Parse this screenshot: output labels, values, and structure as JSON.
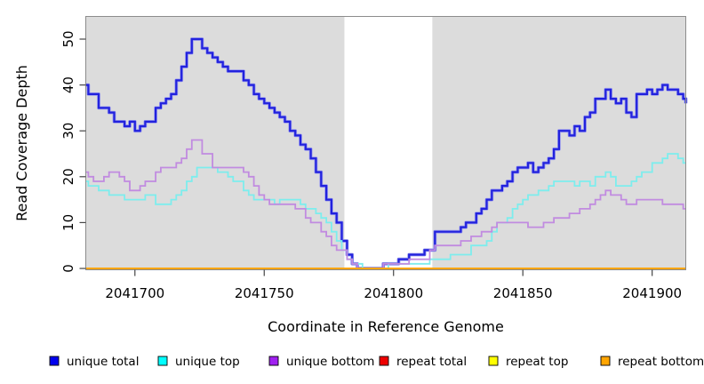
{
  "chart_data": {
    "type": "line",
    "subtype": "step",
    "title": "",
    "xlabel": "Coordinate in Reference Genome",
    "ylabel": "Read Coverage Depth",
    "xlim": [
      2041681,
      2041913
    ],
    "ylim": [
      0,
      55
    ],
    "x_ticks": [
      2041700,
      2041750,
      2041800,
      2041850,
      2041900
    ],
    "y_ticks": [
      0,
      10,
      20,
      30,
      40,
      50
    ],
    "grid": false,
    "legend_position": "bottom",
    "panel_bg_color": "#DCDCDC",
    "panel_border_color": "#8C8C8C",
    "tick_color": "#444444",
    "highlight_region": {
      "x_start": 2041781,
      "x_end": 2041815,
      "color": "#FFFFFF"
    },
    "x": [
      2041680,
      2041682,
      2041684,
      2041686,
      2041688,
      2041690,
      2041692,
      2041694,
      2041696,
      2041698,
      2041700,
      2041702,
      2041704,
      2041706,
      2041708,
      2041710,
      2041712,
      2041714,
      2041716,
      2041718,
      2041720,
      2041722,
      2041724,
      2041726,
      2041728,
      2041730,
      2041732,
      2041734,
      2041736,
      2041738,
      2041740,
      2041742,
      2041744,
      2041746,
      2041748,
      2041750,
      2041752,
      2041754,
      2041756,
      2041758,
      2041760,
      2041762,
      2041764,
      2041766,
      2041768,
      2041770,
      2041772,
      2041774,
      2041776,
      2041778,
      2041780,
      2041782,
      2041784,
      2041786,
      2041788,
      2041790,
      2041792,
      2041794,
      2041796,
      2041798,
      2041800,
      2041802,
      2041804,
      2041806,
      2041808,
      2041810,
      2041812,
      2041814,
      2041816,
      2041818,
      2041820,
      2041822,
      2041824,
      2041826,
      2041828,
      2041830,
      2041832,
      2041834,
      2041836,
      2041838,
      2041840,
      2041842,
      2041844,
      2041846,
      2041848,
      2041850,
      2041852,
      2041854,
      2041856,
      2041858,
      2041860,
      2041862,
      2041864,
      2041866,
      2041868,
      2041870,
      2041872,
      2041874,
      2041876,
      2041878,
      2041880,
      2041882,
      2041884,
      2041886,
      2041888,
      2041890,
      2041892,
      2041894,
      2041896,
      2041898,
      2041900,
      2041902,
      2041904,
      2041906,
      2041908,
      2041910,
      2041912,
      2041914
    ],
    "series": [
      {
        "name": "unique total",
        "color": "#2222DD",
        "halo_color": "#9A9AEE",
        "legend_color": "#0000EE",
        "width": 2.2,
        "values": [
          40,
          38,
          38,
          35,
          35,
          34,
          32,
          32,
          31,
          32,
          30,
          31,
          32,
          32,
          35,
          36,
          37,
          38,
          41,
          44,
          47,
          50,
          50,
          48,
          47,
          46,
          45,
          44,
          43,
          43,
          43,
          41,
          40,
          38,
          37,
          36,
          35,
          34,
          33,
          32,
          30,
          29,
          27,
          26,
          24,
          21,
          18,
          15,
          12,
          10,
          6,
          3,
          1,
          0,
          0,
          0,
          0,
          0,
          1,
          1,
          1,
          2,
          2,
          3,
          3,
          3,
          4,
          4,
          8,
          8,
          8,
          8,
          8,
          9,
          10,
          10,
          12,
          13,
          15,
          17,
          17,
          18,
          19,
          21,
          22,
          22,
          23,
          21,
          22,
          23,
          24,
          26,
          30,
          30,
          29,
          31,
          30,
          33,
          34,
          37,
          37,
          39,
          37,
          36,
          37,
          34,
          33,
          38,
          38,
          39,
          38,
          39,
          40,
          39,
          39,
          38,
          37,
          36
        ]
      },
      {
        "name": "unique top",
        "color": "#7DEDED",
        "legend_color": "#00FFFF",
        "width": 1.8,
        "values": [
          19,
          18,
          18,
          17,
          17,
          16,
          16,
          16,
          15,
          15,
          15,
          15,
          16,
          16,
          14,
          14,
          14,
          15,
          16,
          17,
          19,
          20,
          22,
          22,
          22,
          22,
          21,
          21,
          20,
          19,
          19,
          17,
          16,
          15,
          15,
          15,
          15,
          14,
          15,
          15,
          15,
          15,
          14,
          13,
          13,
          12,
          11,
          10,
          8,
          6,
          4,
          2,
          1,
          1,
          0,
          0,
          0,
          0,
          0,
          1,
          1,
          1,
          1,
          1,
          1,
          1,
          1,
          2,
          2,
          2,
          2,
          3,
          3,
          3,
          3,
          5,
          5,
          5,
          6,
          8,
          10,
          10,
          11,
          13,
          14,
          15,
          16,
          16,
          17,
          17,
          18,
          19,
          19,
          19,
          19,
          18,
          19,
          19,
          18,
          20,
          20,
          21,
          20,
          18,
          18,
          18,
          19,
          20,
          21,
          21,
          23,
          23,
          24,
          25,
          25,
          24,
          23,
          23
        ]
      },
      {
        "name": "unique bottom",
        "color": "#C18BE0",
        "legend_color": "#A020F0",
        "width": 1.8,
        "values": [
          21,
          20,
          19,
          19,
          20,
          21,
          21,
          20,
          19,
          17,
          17,
          18,
          19,
          19,
          21,
          22,
          22,
          22,
          23,
          24,
          26,
          28,
          28,
          25,
          25,
          22,
          22,
          22,
          22,
          22,
          22,
          21,
          20,
          18,
          16,
          15,
          14,
          14,
          14,
          14,
          14,
          13,
          13,
          11,
          10,
          10,
          8,
          7,
          5,
          4,
          4,
          2,
          1,
          0,
          0,
          0,
          0,
          0,
          1,
          1,
          1,
          1,
          1,
          2,
          2,
          2,
          2,
          4,
          5,
          5,
          5,
          5,
          5,
          6,
          6,
          7,
          7,
          8,
          8,
          9,
          10,
          10,
          10,
          10,
          10,
          10,
          9,
          9,
          9,
          10,
          10,
          11,
          11,
          11,
          12,
          12,
          13,
          13,
          14,
          15,
          16,
          17,
          16,
          16,
          15,
          14,
          14,
          15,
          15,
          15,
          15,
          15,
          14,
          14,
          14,
          14,
          13,
          13
        ]
      },
      {
        "name": "repeat total",
        "color": "#DD0000",
        "legend_color": "#EE0000",
        "width": 1.8,
        "values_constant": 0
      },
      {
        "name": "repeat top",
        "color": "#FFFF00",
        "legend_color": "#FFFF00",
        "width": 1.8,
        "values_constant": 0
      },
      {
        "name": "repeat bottom",
        "color": "#FFA500",
        "legend_color": "#FFA500",
        "width": 2,
        "values_constant": 0
      }
    ]
  }
}
